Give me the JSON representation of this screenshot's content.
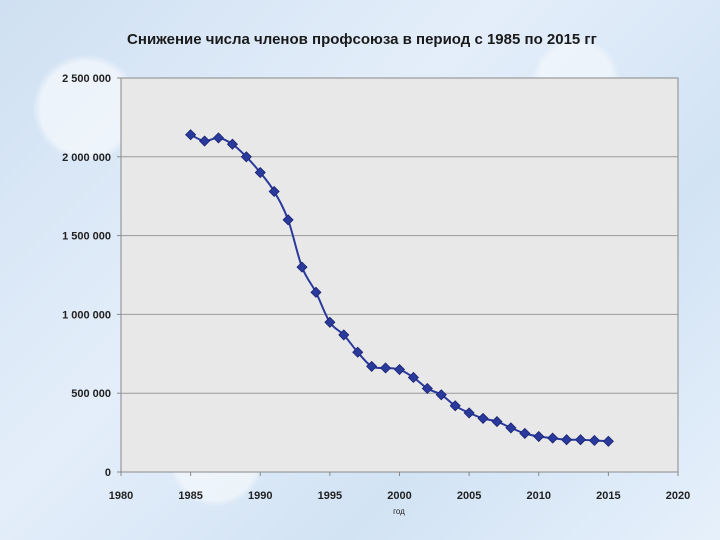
{
  "chart_data": {
    "type": "line",
    "title": "Снижение числа членов профсоюза в период с 1985 по 2015 гг",
    "xlabel": "год",
    "ylabel": "",
    "xlim": [
      1980,
      2020
    ],
    "ylim": [
      0,
      2500000
    ],
    "x_ticks": [
      1980,
      1985,
      1990,
      1995,
      2000,
      2005,
      2010,
      2015,
      2020
    ],
    "x_tick_labels": [
      "1980",
      "1985",
      "1990",
      "1995",
      "2000",
      "2005",
      "2010",
      "2015",
      "2020"
    ],
    "y_ticks": [
      0,
      500000,
      1000000,
      1500000,
      2000000,
      2500000
    ],
    "y_tick_labels": [
      "0",
      "500 000",
      "1 000 000",
      "1 500 000",
      "2 000 000",
      "2 500 000"
    ],
    "grid": "horizontal",
    "legend": "none",
    "series": [
      {
        "name": "Число членов профсоюза",
        "color": "#2a3a9c",
        "marker": "diamond",
        "x": [
          1985,
          1986,
          1987,
          1988,
          1989,
          1990,
          1991,
          1992,
          1993,
          1994,
          1995,
          1996,
          1997,
          1998,
          1999,
          2000,
          2001,
          2002,
          2003,
          2004,
          2005,
          2006,
          2007,
          2008,
          2009,
          2010,
          2011,
          2012,
          2013,
          2014,
          2015
        ],
        "y": [
          2140000,
          2100000,
          2120000,
          2080000,
          2000000,
          1900000,
          1780000,
          1600000,
          1300000,
          1140000,
          950000,
          870000,
          760000,
          670000,
          660000,
          650000,
          600000,
          530000,
          490000,
          420000,
          375000,
          340000,
          320000,
          280000,
          245000,
          225000,
          215000,
          205000,
          205000,
          200000,
          195000
        ]
      }
    ]
  },
  "colors": {
    "plot_background": "#e8e8e8",
    "gridline": "#9a9a9a",
    "axis": "#888888"
  }
}
